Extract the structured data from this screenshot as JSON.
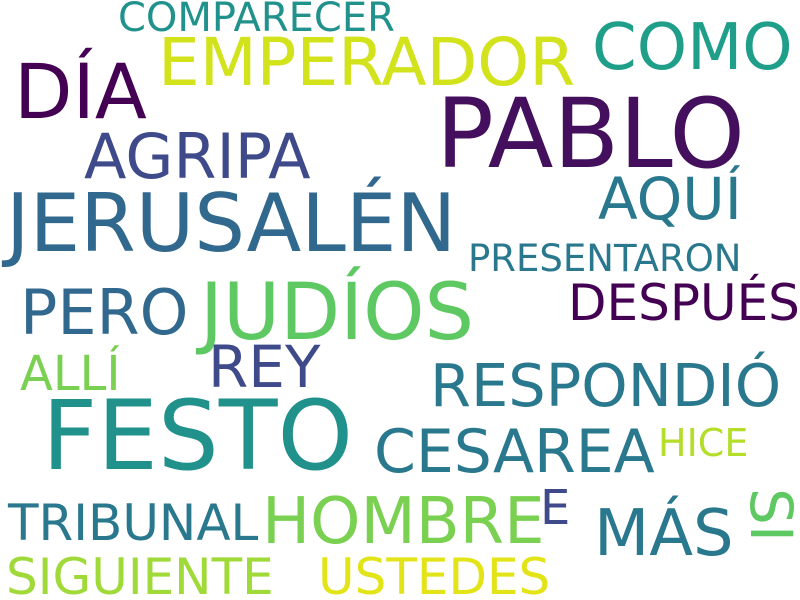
{
  "word_cloud": {
    "words": [
      {
        "id": "festo",
        "text": "FESTO",
        "color": "#21918c"
      },
      {
        "id": "pablo",
        "text": "PABLO",
        "color": "#440f5c"
      },
      {
        "id": "jerusalen",
        "text": "JERUSALÉN",
        "color": "#31688e"
      },
      {
        "id": "judios",
        "text": "JUDÍOS",
        "color": "#5ec962"
      },
      {
        "id": "emperador",
        "text": "EMPERADOR",
        "color": "#d2e21b"
      },
      {
        "id": "dia",
        "text": "DÍA",
        "color": "#440154"
      },
      {
        "id": "agripa",
        "text": "AGRIPA",
        "color": "#3e4a89"
      },
      {
        "id": "como",
        "text": "COMO",
        "color": "#1f9e89"
      },
      {
        "id": "comparecer",
        "text": "COMPARECER",
        "color": "#21918c"
      },
      {
        "id": "aqui",
        "text": "AQUÍ",
        "color": "#2a788e"
      },
      {
        "id": "presentaron",
        "text": "PRESENTARON",
        "color": "#2a788e"
      },
      {
        "id": "despues",
        "text": "DESPUÉS",
        "color": "#440154"
      },
      {
        "id": "pero",
        "text": "PERO",
        "color": "#31688e"
      },
      {
        "id": "rey",
        "text": "REY",
        "color": "#3e4a89"
      },
      {
        "id": "alli",
        "text": "ALLÍ",
        "color": "#7ad151"
      },
      {
        "id": "respondio",
        "text": "RESPONDIÓ",
        "color": "#2a788e"
      },
      {
        "id": "cesarea",
        "text": "CESAREA",
        "color": "#2a788e"
      },
      {
        "id": "hice",
        "text": "HICE",
        "color": "#b5de2b"
      },
      {
        "id": "tribunal",
        "text": "TRIBUNAL",
        "color": "#2a788e"
      },
      {
        "id": "hombre",
        "text": "HOMBRE",
        "color": "#7ad151"
      },
      {
        "id": "e",
        "text": "E",
        "color": "#3e4a89"
      },
      {
        "id": "mas",
        "text": "MÁS",
        "color": "#2a788e"
      },
      {
        "id": "si",
        "text": "SI",
        "color": "#5ec962"
      },
      {
        "id": "siguiente",
        "text": "SIGUIENTE",
        "color": "#a0da39"
      },
      {
        "id": "ustedes",
        "text": "USTEDES",
        "color": "#e2e418"
      }
    ]
  }
}
